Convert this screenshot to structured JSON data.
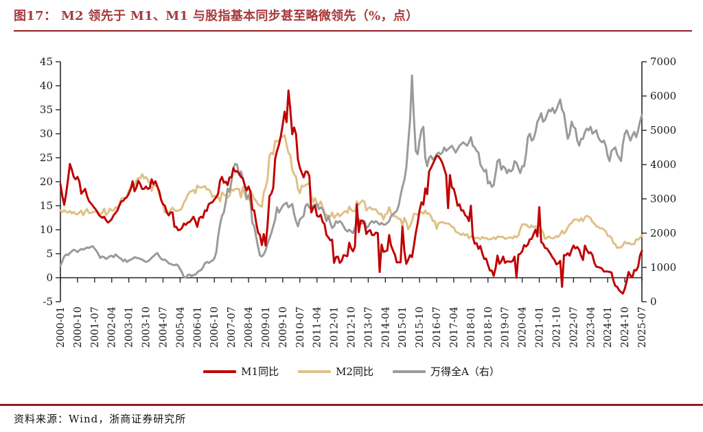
{
  "header": {
    "title": "图17：  M2 领先于 M1、M1 与股指基本同步甚至略微领先（%，点）",
    "title_color": "#A63A3C",
    "rule_color": "#8F1D22"
  },
  "footer": {
    "source_label": "资料来源：Wind，浙商证券研究所"
  },
  "chart_data": {
    "type": "line",
    "x_frequency": "monthly",
    "x_start": "2000-01",
    "x_end": "2025-07",
    "x_tick_labels": [
      "2000-01",
      "2000-10",
      "2001-07",
      "2002-04",
      "2003-01",
      "2003-10",
      "2004-07",
      "2005-04",
      "2006-01",
      "2006-10",
      "2007-07",
      "2008-04",
      "2009-01",
      "2009-10",
      "2010-07",
      "2011-04",
      "2012-01",
      "2012-10",
      "2013-07",
      "2014-04",
      "2015-01",
      "2015-10",
      "2016-07",
      "2017-04",
      "2018-01",
      "2018-10",
      "2019-07",
      "2020-04",
      "2021-01",
      "2021-10",
      "2022-07",
      "2023-04",
      "2024-01",
      "2024-10",
      "2025-07"
    ],
    "left_axis": {
      "min": -5,
      "max": 45,
      "step": 5,
      "unit": "%"
    },
    "right_axis": {
      "min": 0,
      "max": 7000,
      "step": 1000,
      "unit": "点"
    },
    "legend_position": "bottom",
    "axis_color": "#262626",
    "series": [
      {
        "name": "M1同比",
        "axis": "left",
        "color": "#C00000",
        "values": [
          19.5,
          17.0,
          15.2,
          17.5,
          20.5,
          23.7,
          22.5,
          21.0,
          20.5,
          21.0,
          20.0,
          17.5,
          18.0,
          18.5,
          17.0,
          16.0,
          15.5,
          15.0,
          14.5,
          14.0,
          13.2,
          12.8,
          12.5,
          12.7,
          12.0,
          11.5,
          11.8,
          12.2,
          13.0,
          13.5,
          14.0,
          15.0,
          15.9,
          16.0,
          16.5,
          16.8,
          17.5,
          18.5,
          20.1,
          18.0,
          18.8,
          20.2,
          19.5,
          18.5,
          18.5,
          19.0,
          18.5,
          18.7,
          20.5,
          19.5,
          20.1,
          19.0,
          18.0,
          16.2,
          15.3,
          15.0,
          13.6,
          13.0,
          13.6,
          13.6,
          10.6,
          10.6,
          9.9,
          10.0,
          10.4,
          11.3,
          11.0,
          11.5,
          11.6,
          12.1,
          12.7,
          11.8,
          10.6,
          12.4,
          12.7,
          12.5,
          14.0,
          13.9,
          15.3,
          15.6,
          15.7,
          16.3,
          16.8,
          17.5,
          20.2,
          21.0,
          19.8,
          20.0,
          19.3,
          20.9,
          20.9,
          22.8,
          22.1,
          22.2,
          21.7,
          21.0,
          20.7,
          19.2,
          18.2,
          19.0,
          17.9,
          14.2,
          14.0,
          11.5,
          9.4,
          8.9,
          6.8,
          9.1,
          6.7,
          10.9,
          17.0,
          17.5,
          18.7,
          24.8,
          26.4,
          27.7,
          29.5,
          32.0,
          34.6,
          32.4,
          39.0,
          35.0,
          29.9,
          31.3,
          29.9,
          24.6,
          22.9,
          21.9,
          20.9,
          22.1,
          22.1,
          21.2,
          13.6,
          14.5,
          15.0,
          12.9,
          12.7,
          13.1,
          11.6,
          11.2,
          8.9,
          8.4,
          7.8,
          7.9,
          3.1,
          4.3,
          4.4,
          3.1,
          3.5,
          4.7,
          4.6,
          4.5,
          7.3,
          6.1,
          5.5,
          6.5,
          15.3,
          9.5,
          11.9,
          11.9,
          11.3,
          9.1,
          9.7,
          9.9,
          8.9,
          8.9,
          9.4,
          9.3,
          1.2,
          6.9,
          5.4,
          5.5,
          5.7,
          8.9,
          6.7,
          5.7,
          4.8,
          3.2,
          3.2,
          3.2,
          10.6,
          5.6,
          2.9,
          3.7,
          4.7,
          4.3,
          6.6,
          9.3,
          11.4,
          14.0,
          15.7,
          15.2,
          18.6,
          17.4,
          22.1,
          22.9,
          23.7,
          24.6,
          25.4,
          25.3,
          24.7,
          23.9,
          22.7,
          21.4,
          14.5,
          21.4,
          18.8,
          18.5,
          17.0,
          15.0,
          15.3,
          14.0,
          14.0,
          13.0,
          12.7,
          11.8,
          15.0,
          8.5,
          7.1,
          7.2,
          6.0,
          6.6,
          5.1,
          3.9,
          4.0,
          2.7,
          1.5,
          1.5,
          0.4,
          2.0,
          4.6,
          2.9,
          3.4,
          4.4,
          3.1,
          3.4,
          3.4,
          3.3,
          3.5,
          4.4,
          0.0,
          4.8,
          5.0,
          5.5,
          6.8,
          6.5,
          6.9,
          8.0,
          8.1,
          9.1,
          10.0,
          8.6,
          14.7,
          7.4,
          7.1,
          6.2,
          6.1,
          5.5,
          4.9,
          4.2,
          3.7,
          2.8,
          3.0,
          3.5,
          -1.9,
          4.7,
          4.7,
          5.1,
          4.6,
          5.8,
          6.7,
          6.1,
          6.4,
          5.8,
          4.6,
          3.7,
          6.7,
          5.8,
          5.1,
          5.3,
          4.7,
          3.1,
          2.3,
          2.2,
          2.1,
          1.9,
          1.3,
          1.3,
          1.3,
          1.2,
          1.1,
          -0.6,
          -1.7,
          -1.9,
          -2.6,
          -3.0,
          -3.3,
          -2.3,
          -0.7,
          1.2,
          0.4,
          0.1,
          1.6,
          1.5,
          2.3,
          4.6,
          5.6
        ]
      },
      {
        "name": "M2同比",
        "axis": "left",
        "color": "#DFC086",
        "values": [
          14.0,
          13.7,
          14.1,
          13.7,
          13.6,
          13.9,
          13.4,
          13.7,
          13.3,
          13.2,
          13.6,
          14.0,
          13.0,
          13.8,
          14.3,
          13.5,
          13.5,
          13.7,
          13.7,
          13.9,
          13.6,
          13.2,
          13.5,
          14.4,
          13.1,
          13.5,
          14.4,
          14.0,
          14.0,
          14.7,
          14.4,
          15.3,
          16.5,
          16.6,
          16.6,
          16.8,
          18.1,
          18.8,
          19.0,
          19.2,
          20.2,
          20.8,
          20.7,
          21.6,
          20.7,
          21.0,
          20.4,
          19.6,
          18.1,
          19.4,
          19.1,
          19.1,
          17.5,
          16.2,
          15.3,
          13.6,
          13.9,
          13.5,
          14.0,
          14.6,
          14.1,
          13.9,
          14.0,
          14.1,
          14.6,
          15.7,
          16.3,
          17.3,
          17.9,
          18.0,
          18.3,
          17.6,
          19.2,
          18.8,
          18.8,
          18.9,
          19.1,
          18.4,
          18.4,
          17.9,
          16.8,
          17.1,
          16.8,
          16.9,
          15.9,
          17.8,
          17.3,
          17.1,
          16.7,
          17.1,
          18.5,
          18.1,
          18.5,
          18.5,
          18.5,
          16.7,
          18.9,
          17.5,
          16.3,
          16.9,
          18.1,
          17.4,
          16.4,
          16.0,
          15.3,
          15.0,
          14.8,
          17.8,
          18.8,
          20.5,
          25.5,
          26.0,
          25.7,
          28.5,
          28.4,
          28.5,
          29.3,
          29.4,
          29.7,
          27.7,
          26.0,
          25.5,
          22.5,
          21.5,
          21.0,
          18.5,
          17.6,
          19.2,
          19.0,
          19.3,
          19.5,
          19.7,
          17.2,
          15.7,
          16.6,
          15.3,
          15.1,
          15.9,
          14.7,
          13.5,
          13.0,
          12.9,
          12.7,
          13.6,
          12.4,
          13.0,
          13.4,
          12.8,
          13.2,
          13.6,
          13.9,
          13.5,
          14.8,
          14.1,
          13.9,
          13.8,
          15.9,
          15.2,
          15.7,
          16.1,
          15.8,
          14.0,
          14.5,
          14.7,
          14.2,
          14.3,
          14.2,
          13.6,
          13.2,
          13.3,
          12.1,
          13.2,
          13.4,
          14.7,
          13.5,
          12.8,
          12.9,
          12.6,
          12.3,
          12.2,
          10.8,
          12.5,
          11.6,
          10.1,
          10.8,
          11.8,
          13.3,
          13.3,
          13.1,
          13.5,
          13.7,
          13.3,
          14.0,
          13.3,
          13.4,
          12.8,
          11.8,
          11.8,
          10.2,
          11.4,
          11.5,
          11.6,
          11.4,
          11.3,
          11.3,
          11.1,
          10.6,
          10.5,
          9.6,
          9.4,
          9.2,
          8.9,
          9.2,
          8.8,
          9.1,
          8.2,
          8.6,
          8.8,
          8.2,
          8.3,
          8.3,
          8.0,
          8.5,
          8.2,
          8.3,
          8.0,
          8.0,
          8.1,
          8.4,
          8.0,
          8.6,
          8.5,
          8.5,
          8.5,
          8.1,
          8.2,
          8.4,
          8.4,
          8.2,
          8.7,
          8.4,
          8.8,
          10.1,
          11.1,
          11.1,
          11.1,
          10.7,
          10.4,
          10.9,
          10.5,
          10.7,
          10.1,
          9.4,
          10.1,
          9.4,
          8.1,
          8.3,
          8.6,
          8.3,
          8.2,
          8.3,
          8.7,
          8.5,
          9.0,
          9.8,
          9.2,
          9.7,
          10.5,
          11.1,
          11.4,
          12.0,
          12.2,
          12.1,
          11.8,
          12.4,
          11.8,
          12.6,
          12.9,
          12.7,
          12.4,
          11.6,
          11.3,
          10.7,
          10.6,
          10.3,
          10.3,
          10.0,
          9.7,
          8.7,
          8.7,
          8.3,
          7.2,
          7.0,
          6.2,
          6.3,
          6.3,
          6.8,
          7.5,
          7.1,
          7.3,
          7.0,
          7.0,
          7.0,
          8.0,
          7.9,
          8.3,
          8.8
        ]
      },
      {
        "name": "万得全A（右）",
        "axis": "right",
        "color": "#9A9A9A",
        "values": [
          1050,
          1180,
          1320,
          1380,
          1360,
          1420,
          1470,
          1520,
          1490,
          1450,
          1500,
          1540,
          1520,
          1550,
          1580,
          1570,
          1600,
          1620,
          1550,
          1480,
          1380,
          1280,
          1320,
          1300,
          1250,
          1280,
          1330,
          1340,
          1300,
          1380,
          1330,
          1280,
          1250,
          1180,
          1230,
          1160,
          1200,
          1230,
          1250,
          1300,
          1280,
          1270,
          1250,
          1230,
          1190,
          1160,
          1180,
          1220,
          1280,
          1330,
          1380,
          1420,
          1330,
          1250,
          1220,
          1230,
          1180,
          1120,
          1100,
          1080,
          1060,
          1090,
          1050,
          950,
          850,
          720,
          700,
          780,
          790,
          750,
          780,
          790,
          850,
          900,
          920,
          1000,
          1120,
          1160,
          1130,
          1170,
          1200,
          1260,
          1440,
          1900,
          2250,
          2500,
          2600,
          2900,
          3300,
          3200,
          3500,
          3900,
          4020,
          4000,
          3700,
          3800,
          3600,
          3400,
          3000,
          3100,
          2900,
          2300,
          2200,
          1900,
          1600,
          1350,
          1320,
          1380,
          1500,
          1700,
          1850,
          2000,
          2200,
          2400,
          2750,
          2600,
          2700,
          2800,
          2850,
          2890,
          2750,
          2800,
          2850,
          2550,
          2350,
          2200,
          2400,
          2450,
          2500,
          2800,
          2850,
          2750,
          2700,
          2800,
          2830,
          2850,
          2700,
          2750,
          2700,
          2550,
          2350,
          2500,
          2300,
          2150,
          2200,
          2350,
          2300,
          2350,
          2300,
          2200,
          2100,
          2050,
          2100,
          2050,
          2000,
          2150,
          2350,
          2400,
          2300,
          2280,
          2350,
          2150,
          2200,
          2300,
          2350,
          2300,
          2350,
          2300,
          2250,
          2300,
          2250,
          2250,
          2300,
          2350,
          2500,
          2550,
          2600,
          2650,
          2800,
          3100,
          3350,
          3550,
          3900,
          4600,
          5300,
          6600,
          5400,
          4400,
          4300,
          4700,
          5000,
          5100,
          4200,
          3950,
          4200,
          4250,
          4150,
          4200,
          4300,
          4350,
          4300,
          4350,
          4500,
          4400,
          4450,
          4500,
          4550,
          4450,
          4350,
          4450,
          4550,
          4600,
          4650,
          4600,
          4550,
          4650,
          4800,
          4550,
          4500,
          4400,
          4350,
          4000,
          3900,
          3800,
          3850,
          3450,
          3500,
          3350,
          3400,
          3750,
          4100,
          4150,
          3850,
          3950,
          3900,
          3750,
          3850,
          3800,
          3850,
          4100,
          4050,
          3900,
          3750,
          3950,
          3950,
          4300,
          4800,
          4900,
          4700,
          4750,
          4950,
          5250,
          5350,
          5500,
          5250,
          5300,
          5450,
          5600,
          5550,
          5650,
          5500,
          5600,
          5750,
          5900,
          5600,
          5500,
          5100,
          4750,
          4900,
          5250,
          5100,
          5050,
          4700,
          4550,
          4750,
          4750,
          4950,
          5050,
          5000,
          5100,
          4900,
          4950,
          5000,
          4800,
          4700,
          4650,
          4700,
          4550,
          4250,
          4100,
          4400,
          4450,
          4500,
          4300,
          4200,
          4100,
          4600,
          4900,
          5000,
          4850,
          4700,
          4850,
          4950,
          4800,
          5000,
          5250,
          5450
        ]
      }
    ]
  }
}
